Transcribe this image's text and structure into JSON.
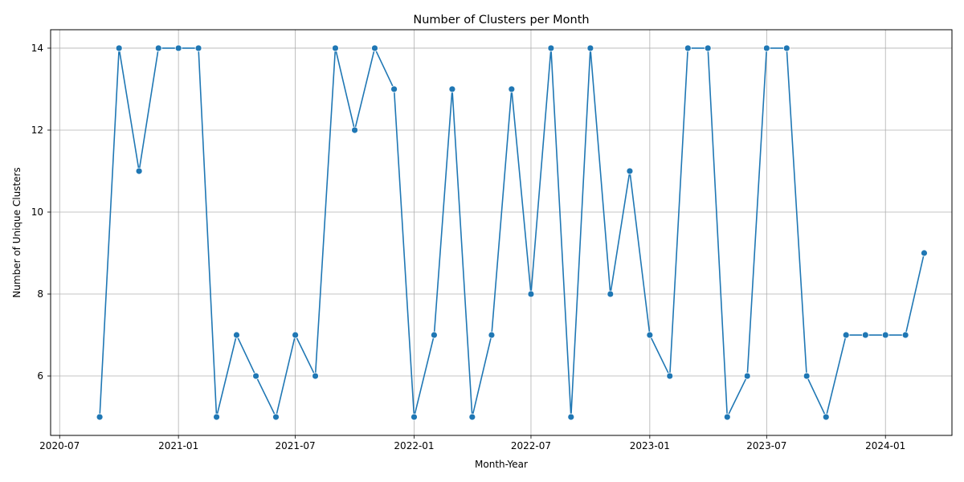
{
  "chart_data": {
    "type": "line",
    "title": "Number of Clusters per Month",
    "xlabel": "Month-Year",
    "ylabel": "Number of Unique Clusters",
    "x_ticks": [
      "2020-07",
      "2021-01",
      "2021-07",
      "2022-01",
      "2022-07",
      "2023-01",
      "2023-07",
      "2024-01"
    ],
    "y_ticks": [
      6,
      8,
      10,
      12,
      14
    ],
    "xlim": [
      "2020-06-17",
      "2024-04-13"
    ],
    "ylim": [
      4.55,
      14.45
    ],
    "grid": true,
    "line_color": "#1f77b4",
    "series": [
      {
        "x": [
          "2020-09",
          "2020-10",
          "2020-11",
          "2020-12",
          "2021-01",
          "2021-02",
          "2021-03",
          "2021-04",
          "2021-05",
          "2021-06",
          "2021-07",
          "2021-08",
          "2021-09",
          "2021-10",
          "2021-11",
          "2021-12",
          "2022-01",
          "2022-02",
          "2022-03",
          "2022-04",
          "2022-05",
          "2022-06",
          "2022-07",
          "2022-08",
          "2022-09",
          "2022-10",
          "2022-11",
          "2022-12",
          "2023-01",
          "2023-02",
          "2023-03",
          "2023-04",
          "2023-05",
          "2023-06",
          "2023-07",
          "2023-08",
          "2023-09",
          "2023-10",
          "2023-11",
          "2023-12",
          "2024-01",
          "2024-02",
          "2024-03"
        ],
        "values": [
          5,
          14,
          11,
          14,
          14,
          14,
          5,
          7,
          6,
          5,
          7,
          6,
          14,
          12,
          14,
          13,
          5,
          7,
          13,
          5,
          7,
          13,
          8,
          14,
          5,
          14,
          8,
          11,
          7,
          6,
          14,
          14,
          5,
          6,
          14,
          14,
          6,
          5,
          7,
          7,
          7,
          7,
          9
        ]
      }
    ]
  }
}
